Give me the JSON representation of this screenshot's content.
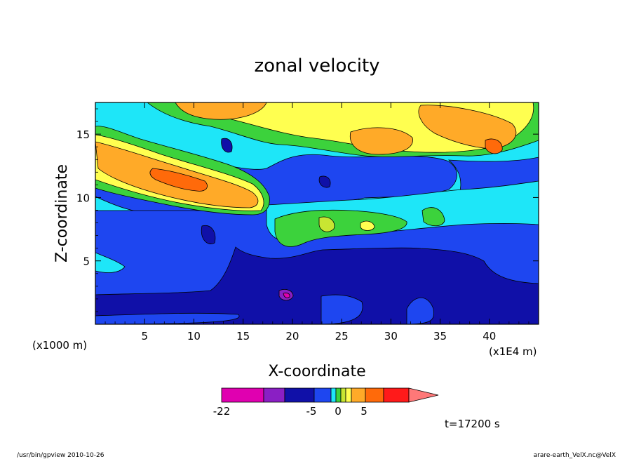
{
  "chart_data": {
    "type": "heatmap",
    "title": "zonal velocity",
    "xlabel": "X-coordinate",
    "ylabel": "Z-coordinate",
    "x_unit_left": "(x1000 m)",
    "x_unit_right": "(x1E4 m)",
    "xlim": [
      0,
      45
    ],
    "ylim": [
      0,
      17.5
    ],
    "x_ticks": [
      "5",
      "10",
      "15",
      "20",
      "25",
      "30",
      "35",
      "40"
    ],
    "y_ticks": [
      "5",
      "10",
      "15"
    ],
    "colorbar": {
      "tick_labels": [
        "-22",
        "-5",
        "0",
        "5"
      ],
      "colors": [
        "#e000b0",
        "#8a1fc4",
        "#1010a8",
        "#1e46f0",
        "#1ee6f8",
        "#3cd23c",
        "#c8e632",
        "#ffff50",
        "#ffaa28",
        "#ff6a0a",
        "#ff1a1a",
        "#ff7878"
      ],
      "extend": "max"
    },
    "annotation": "t=17200 s",
    "regions": [
      {
        "name": "upper jet (left)",
        "value": "orange, max ~10 near x=10, z=12"
      },
      {
        "name": "upper jet (right)",
        "value": "orange near x=30, z=15"
      },
      {
        "name": "lower layer",
        "value": "dark blue below z~6"
      },
      {
        "name": "minimum",
        "value": "magenta near x=19.5, z=2.5"
      }
    ]
  },
  "footer": {
    "left": "/usr/bin/gpview   2010-10-26",
    "right": "arare-earth_VelX.nc@VelX"
  },
  "colors": {
    "cyan": "#1ee6f8",
    "blue": "#1e46f0",
    "navy": "#1010a8",
    "green": "#3cd23c",
    "yellowgreen": "#c8e632",
    "yellow": "#ffff50",
    "orange": "#ffaa28",
    "darkorange": "#ff6a0a",
    "magenta": "#e000b0",
    "purple": "#8a1fc4"
  }
}
